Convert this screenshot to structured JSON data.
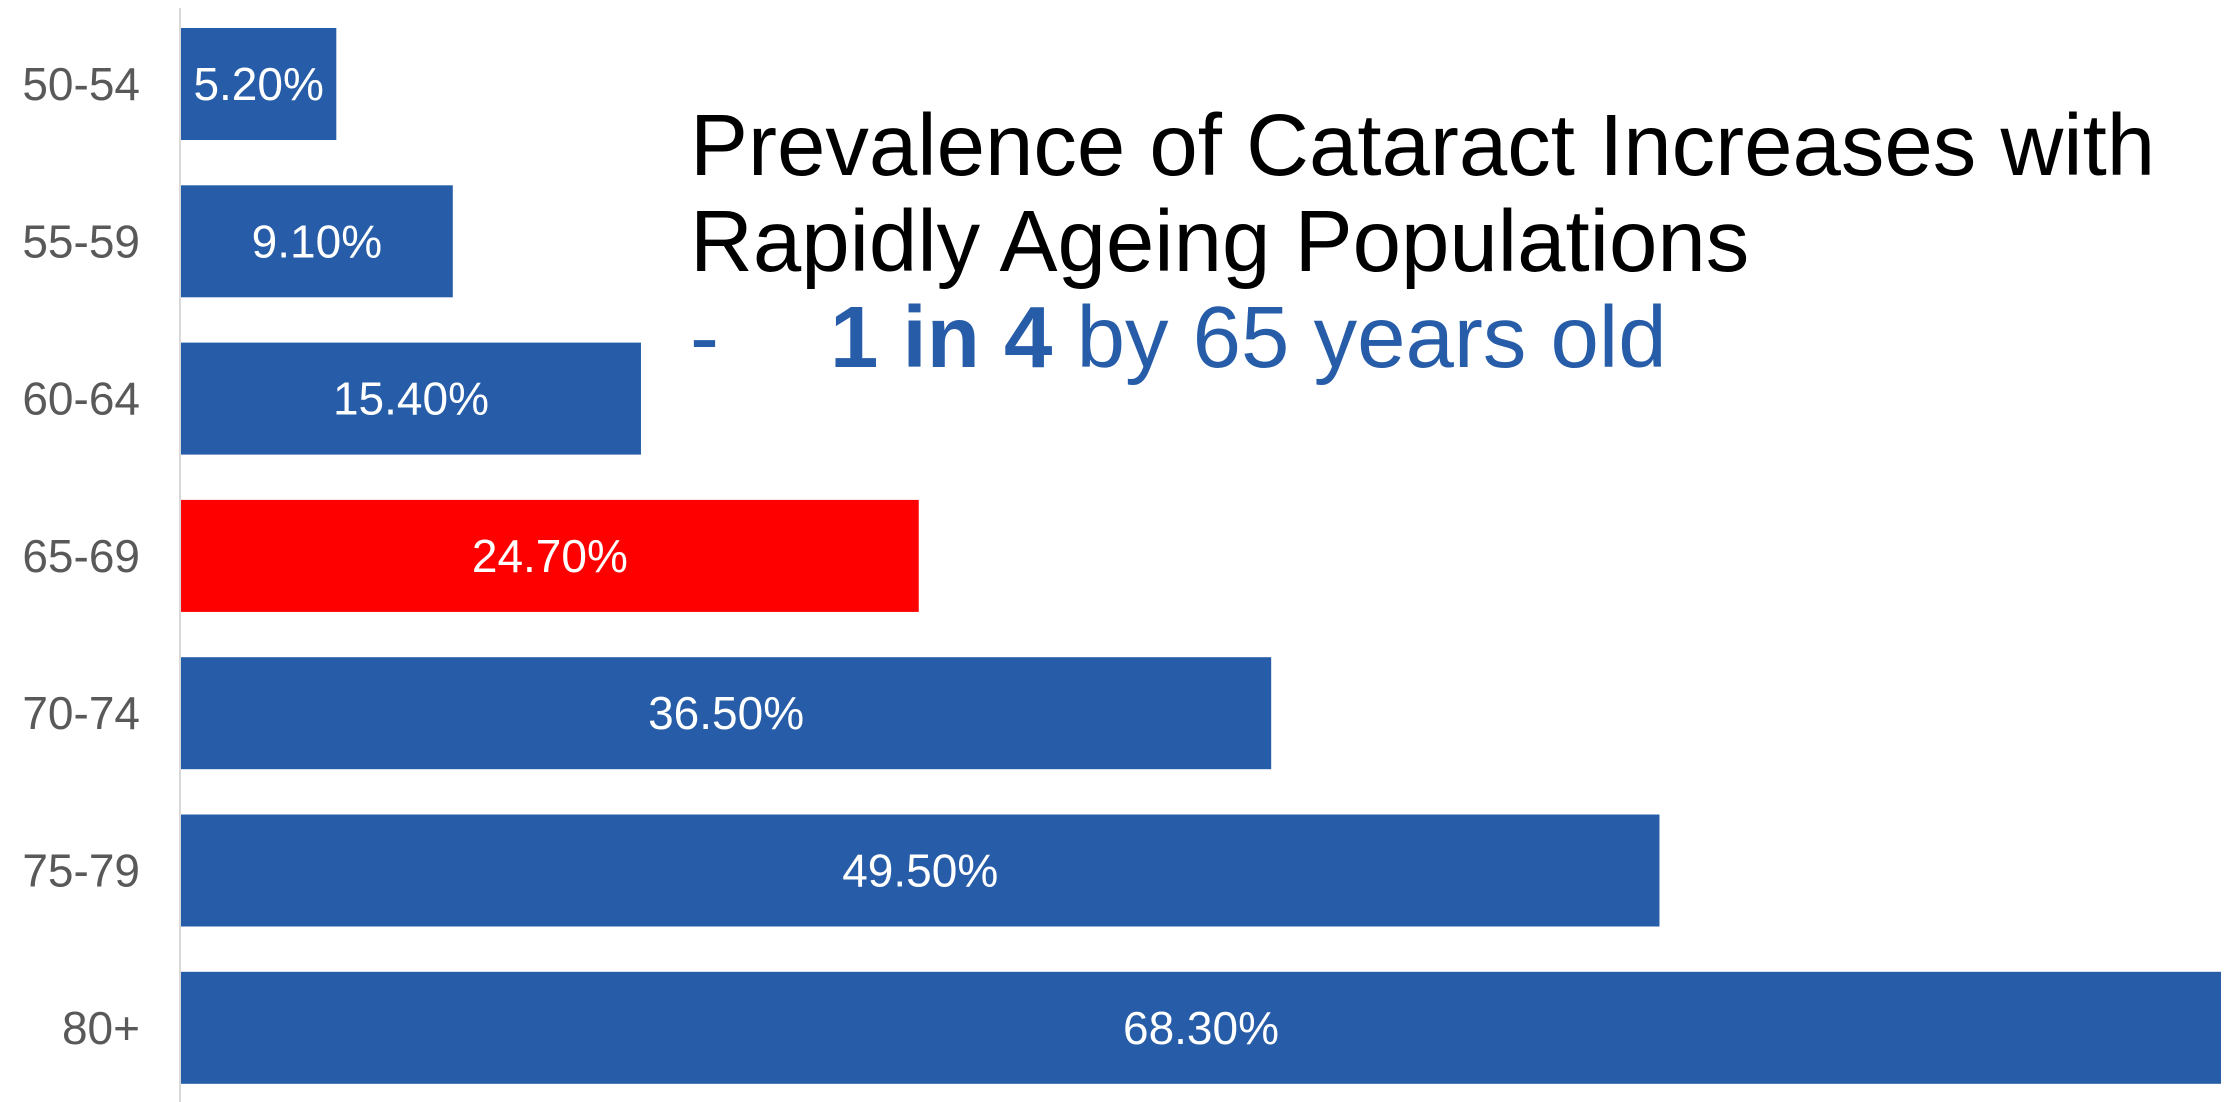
{
  "colors": {
    "bar": "#275DA8",
    "highlight": "#FF0000",
    "axis": "#D9D9D9",
    "tick_label": "#595959",
    "value_label": "#FFFFFF",
    "title": "#000000",
    "subtitle": "#275DA8"
  },
  "chart_data": {
    "type": "bar",
    "orientation": "horizontal",
    "categories": [
      "50-54",
      "55-59",
      "60-64",
      "65-69",
      "70-74",
      "75-79",
      "80+"
    ],
    "values": [
      5.2,
      9.1,
      15.4,
      24.7,
      36.5,
      49.5,
      68.3
    ],
    "data_labels": [
      "5.20%",
      "9.10%",
      "15.40%",
      "24.70%",
      "36.50%",
      "49.50%",
      "68.30%"
    ],
    "highlight_category": "65-69",
    "title": "Prevalence of Cataract Increases with Rapidly Ageing Populations",
    "title_lines": [
      "Prevalence of Cataract Increases with",
      "Rapidly Ageing Populations"
    ],
    "subtitle": {
      "dash": "-",
      "emphasis": "1 in 4",
      "rest": " by 65 years old"
    },
    "xlabel": "",
    "ylabel": "",
    "xlim": [
      0,
      68.3
    ],
    "grid": false,
    "legend": "none"
  }
}
